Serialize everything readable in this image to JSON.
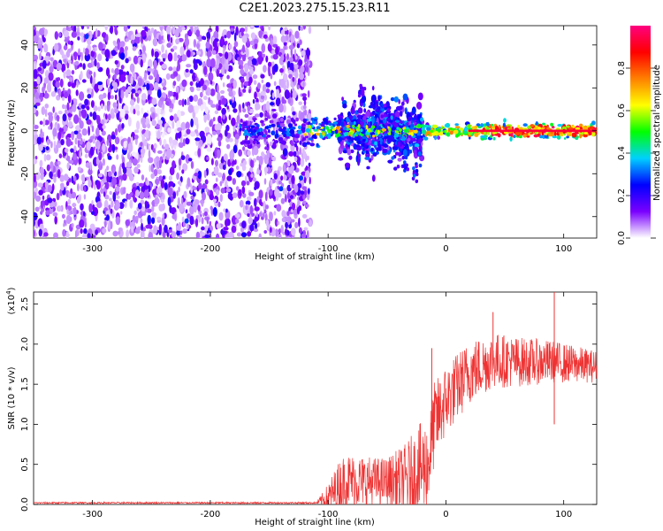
{
  "title": "C2E1.2023.275.15.23.R11",
  "chart_data": [
    {
      "type": "heatmap",
      "xlabel": "Height of straight line (km)",
      "ylabel": "Frequency (Hz)",
      "xlim": [
        -350,
        128
      ],
      "ylim": [
        -50,
        49
      ],
      "xticks": [
        -300,
        -200,
        -100,
        0,
        100
      ],
      "yticks": [
        -40,
        -20,
        0,
        20,
        40
      ],
      "colorbar": {
        "label": "Normalized spectral amplitude",
        "range": [
          0,
          1
        ],
        "ticks": [
          "0.0",
          "0.2",
          "0.4",
          "0.6",
          "0.8"
        ],
        "colors": [
          "#ffffff",
          "#7a00ff",
          "#0000ff",
          "#00d0ff",
          "#00ff00",
          "#ffff00",
          "#ff8000",
          "#ff0000",
          "#ff0080"
        ]
      },
      "features": [
        {
          "name": "noise",
          "x_range": [
            -350,
            -115
          ],
          "y_range": [
            -50,
            49
          ],
          "amplitude": 0.15
        },
        {
          "name": "carrier",
          "x_range": [
            -175,
            128
          ],
          "frequency": 0,
          "amplitude": 0.95
        },
        {
          "name": "spread",
          "x_range": [
            -90,
            -20
          ],
          "y_range": [
            -20,
            20
          ],
          "amplitude": 0.5
        }
      ],
      "grid": false
    },
    {
      "type": "line",
      "xlabel": "Height of straight line (km)",
      "ylabel": "SNR (10 * v/v)",
      "yscale_label": "(x10",
      "yscale_exp": "4",
      "yscale_close": ")",
      "xlim": [
        -350,
        128
      ],
      "ylim": [
        0,
        2.65
      ],
      "xticks": [
        -300,
        -200,
        -100,
        0,
        100
      ],
      "yticks": [
        "0.0",
        "0.5",
        "1.0",
        "1.5",
        "2.0",
        "2.5"
      ],
      "color": "#ee3333",
      "trend": [
        {
          "x": -350,
          "y": 0.02
        },
        {
          "x": -110,
          "y": 0.02
        },
        {
          "x": -100,
          "y": 0.08
        },
        {
          "x": -85,
          "y": 0.3
        },
        {
          "x": -60,
          "y": 0.28
        },
        {
          "x": -35,
          "y": 0.3
        },
        {
          "x": -15,
          "y": 0.5
        },
        {
          "x": -10,
          "y": 1.0
        },
        {
          "x": 0,
          "y": 1.3
        },
        {
          "x": 20,
          "y": 1.65
        },
        {
          "x": 40,
          "y": 1.8
        },
        {
          "x": 60,
          "y": 1.78
        },
        {
          "x": 90,
          "y": 1.78
        },
        {
          "x": 128,
          "y": 1.72
        }
      ],
      "noise": [
        {
          "x": -350,
          "y": 0.01
        },
        {
          "x": -110,
          "y": 0.01
        },
        {
          "x": -90,
          "y": 0.35
        },
        {
          "x": -50,
          "y": 0.3
        },
        {
          "x": -20,
          "y": 0.6
        },
        {
          "x": 0,
          "y": 0.45
        },
        {
          "x": 40,
          "y": 0.35
        },
        {
          "x": 128,
          "y": 0.2
        }
      ],
      "spikes": [
        {
          "x": -12,
          "y": 1.95
        },
        {
          "x": 40,
          "y": 2.4
        },
        {
          "x": 92,
          "y": 2.65
        },
        {
          "x": 92,
          "y": 1.0
        }
      ],
      "grid": false
    }
  ]
}
